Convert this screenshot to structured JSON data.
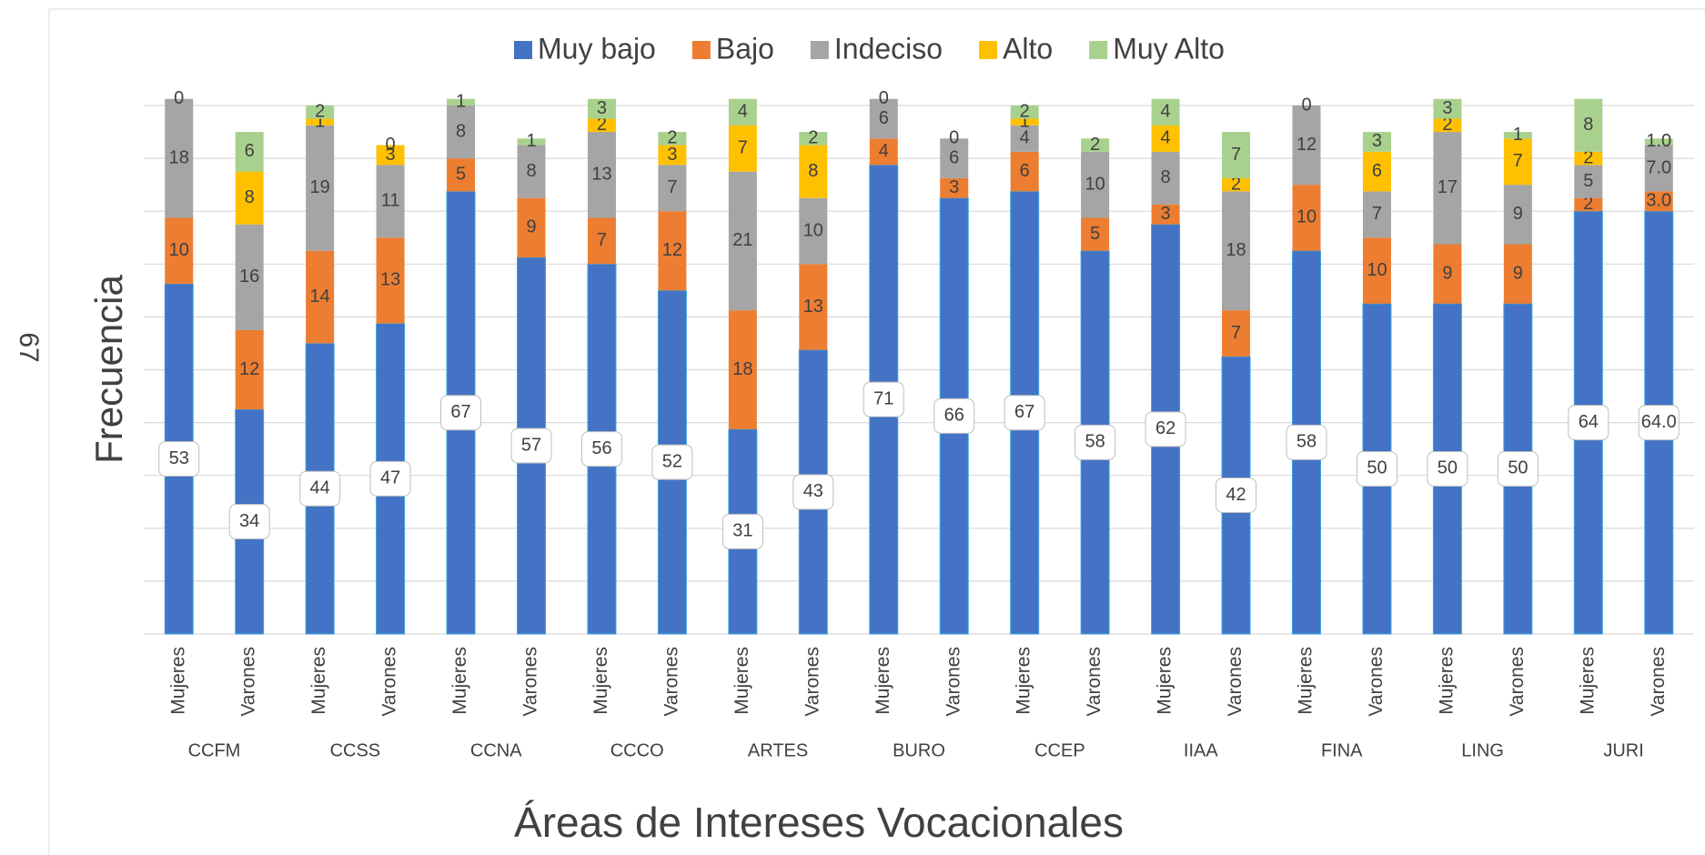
{
  "page_number": "67",
  "chart_data": {
    "type": "stacked_bar",
    "y_label": "Frecuencia",
    "x_label": "Áreas de Intereses Vocacionales",
    "groups": [
      "CCFM",
      "CCSS",
      "CCNA",
      "CCCO",
      "ARTES",
      "BURO",
      "CCEP",
      "IIAA",
      "FINA",
      "LING",
      "JURI"
    ],
    "categories": [
      "Mujeres",
      "Varones",
      "Mujeres",
      "Varones",
      "Mujeres",
      "Varones",
      "Mujeres",
      "Varones",
      "Mujeres",
      "Varones",
      "Mujeres",
      "Varones",
      "Mujeres",
      "Varones",
      "Mujeres",
      "Varones",
      "Mujeres",
      "Varones",
      "Mujeres",
      "Varones",
      "Mujeres",
      "Varones"
    ],
    "series": [
      {
        "name": "Muy bajo",
        "color": "#4472c4",
        "values": [
          53,
          34,
          44,
          47,
          67,
          57,
          56,
          52,
          31,
          43,
          71,
          66,
          67,
          58,
          62,
          42,
          58,
          50,
          50,
          50,
          64,
          64
        ],
        "value_labels": [
          null,
          null,
          null,
          null,
          null,
          null,
          null,
          null,
          null,
          null,
          null,
          null,
          null,
          null,
          null,
          null,
          null,
          null,
          null,
          null,
          null,
          "64.0"
        ]
      },
      {
        "name": "Bajo",
        "color": "#ed7d31",
        "values": [
          10,
          12,
          14,
          13,
          5,
          9,
          7,
          12,
          18,
          13,
          4,
          3,
          6,
          5,
          3,
          7,
          10,
          10,
          9,
          9,
          2,
          3
        ],
        "value_labels": [
          null,
          null,
          null,
          null,
          null,
          null,
          null,
          null,
          null,
          null,
          null,
          null,
          null,
          null,
          null,
          null,
          null,
          null,
          null,
          null,
          null,
          "3.0"
        ]
      },
      {
        "name": "Indeciso",
        "color": "#a5a5a5",
        "values": [
          18,
          16,
          19,
          11,
          8,
          8,
          13,
          7,
          21,
          10,
          6,
          6,
          4,
          10,
          8,
          18,
          12,
          7,
          17,
          9,
          5,
          7
        ],
        "value_labels": [
          null,
          null,
          null,
          null,
          null,
          null,
          null,
          null,
          null,
          null,
          null,
          null,
          null,
          null,
          null,
          null,
          null,
          null,
          null,
          null,
          null,
          "7.0"
        ]
      },
      {
        "name": "Alto",
        "color": "#ffc000",
        "values": [
          null,
          8,
          1,
          3,
          null,
          null,
          2,
          3,
          7,
          8,
          null,
          null,
          1,
          null,
          4,
          2,
          null,
          6,
          2,
          7,
          2,
          null
        ],
        "value_labels": [
          null,
          null,
          null,
          null,
          null,
          null,
          null,
          null,
          null,
          null,
          null,
          null,
          null,
          null,
          null,
          null,
          null,
          null,
          null,
          null,
          null,
          null
        ]
      },
      {
        "name": "Muy Alto",
        "color": "#a9d18e",
        "values": [
          0,
          6,
          2,
          0,
          1,
          1,
          3,
          2,
          4,
          2,
          0,
          0,
          2,
          2,
          4,
          7,
          0,
          3,
          3,
          1,
          8,
          1
        ],
        "value_labels": [
          null,
          null,
          null,
          null,
          null,
          null,
          null,
          null,
          null,
          null,
          null,
          null,
          null,
          null,
          null,
          null,
          null,
          null,
          null,
          null,
          null,
          "1.0"
        ]
      }
    ],
    "ylim": [
      0,
      80
    ],
    "yticks": [
      0,
      8,
      16,
      24,
      32,
      40,
      48,
      56,
      64,
      72,
      80
    ],
    "grid": true,
    "legend": "top"
  }
}
